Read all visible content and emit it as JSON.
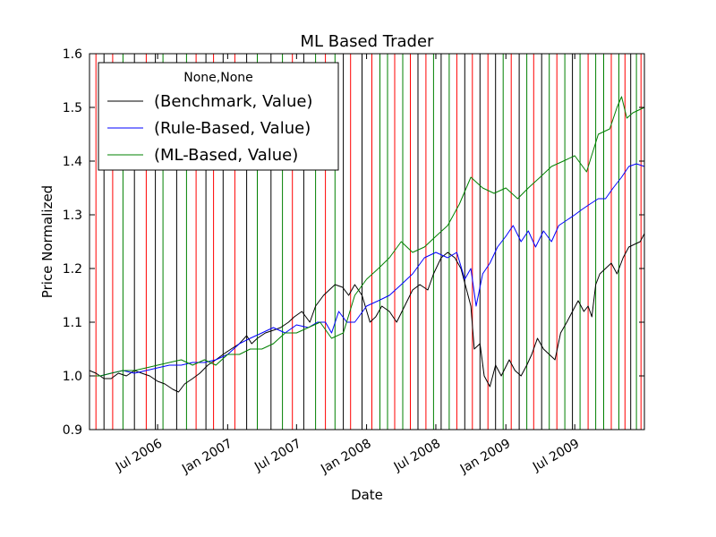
{
  "chart_data": {
    "type": "line",
    "title": "ML Based Trader",
    "xlabel": "Date",
    "ylabel": "Price Normalized",
    "xlim": [
      "2006-01-03",
      "2009-12-31"
    ],
    "ylim": [
      0.9,
      1.6
    ],
    "grid": false,
    "y_ticks": [
      0.9,
      1.0,
      1.1,
      1.2,
      1.3,
      1.4,
      1.5,
      1.6
    ],
    "y_tick_labels": [
      "0.9",
      "1.0",
      "1.1",
      "1.2",
      "1.3",
      "1.4",
      "1.5",
      "1.6"
    ],
    "x_ticks": [
      "2006-07-01",
      "2007-01-01",
      "2007-07-01",
      "2008-01-01",
      "2008-07-01",
      "2009-01-01",
      "2009-07-01"
    ],
    "x_tick_labels": [
      "Jul 2006",
      "Jan 2007",
      "Jul 2007",
      "Jan 2008",
      "Jul 2008",
      "Jan 2009",
      "Jul 2009"
    ],
    "legend": {
      "title": "None,None",
      "location": "upper-left",
      "entries": [
        "(Benchmark, Value)",
        "(Rule-Based, Value)",
        "(ML-Based, Value)"
      ]
    },
    "series": [
      {
        "name": "(Benchmark, Value)",
        "color": "#000000",
        "points": [
          [
            "2006-01-03",
            1.01
          ],
          [
            "2006-01-20",
            1.005
          ],
          [
            "2006-02-10",
            0.995
          ],
          [
            "2006-03-01",
            0.995
          ],
          [
            "2006-03-20",
            1.005
          ],
          [
            "2006-04-10",
            1.0
          ],
          [
            "2006-05-01",
            1.01
          ],
          [
            "2006-05-20",
            1.005
          ],
          [
            "2006-06-10",
            1.0
          ],
          [
            "2006-07-01",
            0.99
          ],
          [
            "2006-07-20",
            0.985
          ],
          [
            "2006-08-10",
            0.975
          ],
          [
            "2006-08-25",
            0.97
          ],
          [
            "2006-09-10",
            0.985
          ],
          [
            "2006-10-01",
            0.995
          ],
          [
            "2006-10-20",
            1.005
          ],
          [
            "2006-11-10",
            1.02
          ],
          [
            "2006-12-01",
            1.03
          ],
          [
            "2006-12-20",
            1.04
          ],
          [
            "2007-01-10",
            1.05
          ],
          [
            "2007-02-01",
            1.06
          ],
          [
            "2007-02-20",
            1.075
          ],
          [
            "2007-03-05",
            1.06
          ],
          [
            "2007-03-20",
            1.07
          ],
          [
            "2007-04-10",
            1.08
          ],
          [
            "2007-05-01",
            1.085
          ],
          [
            "2007-05-20",
            1.09
          ],
          [
            "2007-06-10",
            1.1
          ],
          [
            "2007-06-25",
            1.11
          ],
          [
            "2007-07-15",
            1.12
          ],
          [
            "2007-08-05",
            1.1
          ],
          [
            "2007-08-20",
            1.13
          ],
          [
            "2007-09-10",
            1.15
          ],
          [
            "2007-09-25",
            1.16
          ],
          [
            "2007-10-10",
            1.17
          ],
          [
            "2007-10-30",
            1.165
          ],
          [
            "2007-11-15",
            1.15
          ],
          [
            "2007-12-01",
            1.17
          ],
          [
            "2007-12-20",
            1.15
          ],
          [
            "2008-01-10",
            1.1
          ],
          [
            "2008-01-25",
            1.11
          ],
          [
            "2008-02-10",
            1.13
          ],
          [
            "2008-03-01",
            1.12
          ],
          [
            "2008-03-20",
            1.1
          ],
          [
            "2008-04-10",
            1.13
          ],
          [
            "2008-05-01",
            1.16
          ],
          [
            "2008-05-20",
            1.17
          ],
          [
            "2008-06-10",
            1.16
          ],
          [
            "2008-06-25",
            1.19
          ],
          [
            "2008-07-15",
            1.22
          ],
          [
            "2008-08-01",
            1.23
          ],
          [
            "2008-08-20",
            1.22
          ],
          [
            "2008-09-05",
            1.2
          ],
          [
            "2008-09-20",
            1.16
          ],
          [
            "2008-10-01",
            1.13
          ],
          [
            "2008-10-10",
            1.05
          ],
          [
            "2008-10-25",
            1.06
          ],
          [
            "2008-11-05",
            1.0
          ],
          [
            "2008-11-20",
            0.98
          ],
          [
            "2008-12-05",
            1.02
          ],
          [
            "2008-12-20",
            1.0
          ],
          [
            "2009-01-10",
            1.03
          ],
          [
            "2009-01-25",
            1.01
          ],
          [
            "2009-02-10",
            1.0
          ],
          [
            "2009-02-25",
            1.02
          ],
          [
            "2009-03-10",
            1.04
          ],
          [
            "2009-03-25",
            1.07
          ],
          [
            "2009-04-10",
            1.05
          ],
          [
            "2009-04-25",
            1.04
          ],
          [
            "2009-05-10",
            1.03
          ],
          [
            "2009-05-25",
            1.08
          ],
          [
            "2009-06-10",
            1.1
          ],
          [
            "2009-06-25",
            1.12
          ],
          [
            "2009-07-10",
            1.14
          ],
          [
            "2009-07-25",
            1.12
          ],
          [
            "2009-08-05",
            1.13
          ],
          [
            "2009-08-15",
            1.11
          ],
          [
            "2009-08-25",
            1.17
          ],
          [
            "2009-09-05",
            1.19
          ],
          [
            "2009-09-20",
            1.2
          ],
          [
            "2009-10-05",
            1.21
          ],
          [
            "2009-10-20",
            1.19
          ],
          [
            "2009-11-05",
            1.22
          ],
          [
            "2009-11-20",
            1.24
          ],
          [
            "2009-12-05",
            1.245
          ],
          [
            "2009-12-20",
            1.25
          ],
          [
            "2009-12-31",
            1.265
          ]
        ]
      },
      {
        "name": "(Rule-Based, Value)",
        "color": "#0000ff",
        "points": [
          [
            "2006-01-03",
            1.0
          ],
          [
            "2006-02-01",
            1.0
          ],
          [
            "2006-03-01",
            1.005
          ],
          [
            "2006-04-01",
            1.01
          ],
          [
            "2006-05-01",
            1.005
          ],
          [
            "2006-06-01",
            1.01
          ],
          [
            "2006-07-01",
            1.015
          ],
          [
            "2006-08-01",
            1.02
          ],
          [
            "2006-09-01",
            1.02
          ],
          [
            "2006-10-01",
            1.025
          ],
          [
            "2006-11-01",
            1.025
          ],
          [
            "2006-12-01",
            1.03
          ],
          [
            "2007-01-01",
            1.04
          ],
          [
            "2007-02-01",
            1.06
          ],
          [
            "2007-03-01",
            1.07
          ],
          [
            "2007-04-01",
            1.08
          ],
          [
            "2007-05-01",
            1.09
          ],
          [
            "2007-06-01",
            1.08
          ],
          [
            "2007-07-01",
            1.095
          ],
          [
            "2007-08-01",
            1.09
          ],
          [
            "2007-08-25",
            1.1
          ],
          [
            "2007-09-15",
            1.1
          ],
          [
            "2007-10-01",
            1.08
          ],
          [
            "2007-10-20",
            1.12
          ],
          [
            "2007-11-10",
            1.1
          ],
          [
            "2007-12-01",
            1.1
          ],
          [
            "2008-01-01",
            1.13
          ],
          [
            "2008-02-01",
            1.14
          ],
          [
            "2008-03-01",
            1.15
          ],
          [
            "2008-04-01",
            1.17
          ],
          [
            "2008-05-01",
            1.19
          ],
          [
            "2008-06-01",
            1.22
          ],
          [
            "2008-07-01",
            1.23
          ],
          [
            "2008-08-01",
            1.22
          ],
          [
            "2008-08-25",
            1.23
          ],
          [
            "2008-09-15",
            1.18
          ],
          [
            "2008-10-01",
            1.2
          ],
          [
            "2008-10-15",
            1.13
          ],
          [
            "2008-11-01",
            1.19
          ],
          [
            "2008-11-20",
            1.21
          ],
          [
            "2008-12-10",
            1.24
          ],
          [
            "2009-01-01",
            1.26
          ],
          [
            "2009-01-20",
            1.28
          ],
          [
            "2009-02-10",
            1.25
          ],
          [
            "2009-03-01",
            1.27
          ],
          [
            "2009-03-20",
            1.24
          ],
          [
            "2009-04-10",
            1.27
          ],
          [
            "2009-05-01",
            1.25
          ],
          [
            "2009-05-20",
            1.28
          ],
          [
            "2009-06-10",
            1.29
          ],
          [
            "2009-07-01",
            1.3
          ],
          [
            "2009-07-20",
            1.31
          ],
          [
            "2009-08-10",
            1.32
          ],
          [
            "2009-09-01",
            1.33
          ],
          [
            "2009-09-20",
            1.33
          ],
          [
            "2009-10-10",
            1.35
          ],
          [
            "2009-11-01",
            1.37
          ],
          [
            "2009-11-20",
            1.39
          ],
          [
            "2009-12-10",
            1.395
          ],
          [
            "2009-12-31",
            1.39
          ]
        ]
      },
      {
        "name": "(ML-Based, Value)",
        "color": "#008000",
        "points": [
          [
            "2006-01-03",
            1.0
          ],
          [
            "2006-02-01",
            1.0
          ],
          [
            "2006-03-01",
            1.005
          ],
          [
            "2006-04-01",
            1.01
          ],
          [
            "2006-05-01",
            1.01
          ],
          [
            "2006-06-01",
            1.015
          ],
          [
            "2006-07-01",
            1.02
          ],
          [
            "2006-08-01",
            1.025
          ],
          [
            "2006-09-01",
            1.03
          ],
          [
            "2006-10-01",
            1.02
          ],
          [
            "2006-11-01",
            1.03
          ],
          [
            "2006-12-01",
            1.02
          ],
          [
            "2007-01-01",
            1.04
          ],
          [
            "2007-02-01",
            1.04
          ],
          [
            "2007-03-01",
            1.05
          ],
          [
            "2007-04-01",
            1.05
          ],
          [
            "2007-05-01",
            1.06
          ],
          [
            "2007-06-01",
            1.08
          ],
          [
            "2007-07-01",
            1.08
          ],
          [
            "2007-08-01",
            1.09
          ],
          [
            "2007-09-01",
            1.1
          ],
          [
            "2007-10-01",
            1.07
          ],
          [
            "2007-11-01",
            1.08
          ],
          [
            "2007-12-01",
            1.15
          ],
          [
            "2008-01-01",
            1.18
          ],
          [
            "2008-02-01",
            1.2
          ],
          [
            "2008-03-01",
            1.22
          ],
          [
            "2008-04-01",
            1.25
          ],
          [
            "2008-05-01",
            1.23
          ],
          [
            "2008-06-01",
            1.24
          ],
          [
            "2008-07-01",
            1.26
          ],
          [
            "2008-08-01",
            1.28
          ],
          [
            "2008-09-01",
            1.32
          ],
          [
            "2008-10-01",
            1.37
          ],
          [
            "2008-11-01",
            1.35
          ],
          [
            "2008-12-01",
            1.34
          ],
          [
            "2009-01-01",
            1.35
          ],
          [
            "2009-02-01",
            1.33
          ],
          [
            "2009-03-01",
            1.35
          ],
          [
            "2009-04-01",
            1.37
          ],
          [
            "2009-05-01",
            1.39
          ],
          [
            "2009-06-01",
            1.4
          ],
          [
            "2009-07-01",
            1.41
          ],
          [
            "2009-08-01",
            1.38
          ],
          [
            "2009-09-01",
            1.45
          ],
          [
            "2009-10-01",
            1.46
          ],
          [
            "2009-10-20",
            1.5
          ],
          [
            "2009-11-01",
            1.52
          ],
          [
            "2009-11-15",
            1.48
          ],
          [
            "2009-12-01",
            1.49
          ],
          [
            "2009-12-31",
            1.5
          ]
        ]
      }
    ],
    "vertical_lines": [
      {
        "date": "2006-01-20",
        "color": "red"
      },
      {
        "date": "2006-02-10",
        "color": "black"
      },
      {
        "date": "2006-03-05",
        "color": "red"
      },
      {
        "date": "2006-04-01",
        "color": "green"
      },
      {
        "date": "2006-05-01",
        "color": "black"
      },
      {
        "date": "2006-06-01",
        "color": "red"
      },
      {
        "date": "2006-06-25",
        "color": "black"
      },
      {
        "date": "2006-07-15",
        "color": "green"
      },
      {
        "date": "2006-08-20",
        "color": "black"
      },
      {
        "date": "2006-09-15",
        "color": "green"
      },
      {
        "date": "2006-10-10",
        "color": "red"
      },
      {
        "date": "2006-11-05",
        "color": "black"
      },
      {
        "date": "2006-11-25",
        "color": "red"
      },
      {
        "date": "2006-12-20",
        "color": "black"
      },
      {
        "date": "2007-01-20",
        "color": "red"
      },
      {
        "date": "2007-02-20",
        "color": "black"
      },
      {
        "date": "2007-03-20",
        "color": "green"
      },
      {
        "date": "2007-04-25",
        "color": "black"
      },
      {
        "date": "2007-05-25",
        "color": "green"
      },
      {
        "date": "2007-06-20",
        "color": "red"
      },
      {
        "date": "2007-07-20",
        "color": "black"
      },
      {
        "date": "2007-08-20",
        "color": "green"
      },
      {
        "date": "2007-09-15",
        "color": "red"
      },
      {
        "date": "2007-10-10",
        "color": "green"
      },
      {
        "date": "2007-11-01",
        "color": "black"
      },
      {
        "date": "2007-11-20",
        "color": "red"
      },
      {
        "date": "2007-12-20",
        "color": "black"
      },
      {
        "date": "2008-01-15",
        "color": "red"
      },
      {
        "date": "2008-02-05",
        "color": "green"
      },
      {
        "date": "2008-02-25",
        "color": "green"
      },
      {
        "date": "2008-03-15",
        "color": "red"
      },
      {
        "date": "2008-04-05",
        "color": "green"
      },
      {
        "date": "2008-04-25",
        "color": "red"
      },
      {
        "date": "2008-05-15",
        "color": "black"
      },
      {
        "date": "2008-06-05",
        "color": "red"
      },
      {
        "date": "2008-06-25",
        "color": "green"
      },
      {
        "date": "2008-07-15",
        "color": "black"
      },
      {
        "date": "2008-08-05",
        "color": "green"
      },
      {
        "date": "2008-08-25",
        "color": "red"
      },
      {
        "date": "2008-09-15",
        "color": "black"
      },
      {
        "date": "2008-10-05",
        "color": "red"
      },
      {
        "date": "2008-10-25",
        "color": "black"
      },
      {
        "date": "2008-11-15",
        "color": "red"
      },
      {
        "date": "2008-12-05",
        "color": "black"
      },
      {
        "date": "2008-12-25",
        "color": "green"
      },
      {
        "date": "2009-01-15",
        "color": "red"
      },
      {
        "date": "2009-02-05",
        "color": "black"
      },
      {
        "date": "2009-02-25",
        "color": "green"
      },
      {
        "date": "2009-03-15",
        "color": "red"
      },
      {
        "date": "2009-04-05",
        "color": "black"
      },
      {
        "date": "2009-04-25",
        "color": "green"
      },
      {
        "date": "2009-05-15",
        "color": "red"
      },
      {
        "date": "2009-06-05",
        "color": "green"
      },
      {
        "date": "2009-06-25",
        "color": "black"
      },
      {
        "date": "2009-07-15",
        "color": "green"
      },
      {
        "date": "2009-08-05",
        "color": "red"
      },
      {
        "date": "2009-08-25",
        "color": "green"
      },
      {
        "date": "2009-09-15",
        "color": "green"
      },
      {
        "date": "2009-10-05",
        "color": "red"
      },
      {
        "date": "2009-10-25",
        "color": "green"
      },
      {
        "date": "2009-11-10",
        "color": "red"
      },
      {
        "date": "2009-11-25",
        "color": "black"
      },
      {
        "date": "2009-12-10",
        "color": "green"
      },
      {
        "date": "2009-12-22",
        "color": "red"
      }
    ]
  }
}
